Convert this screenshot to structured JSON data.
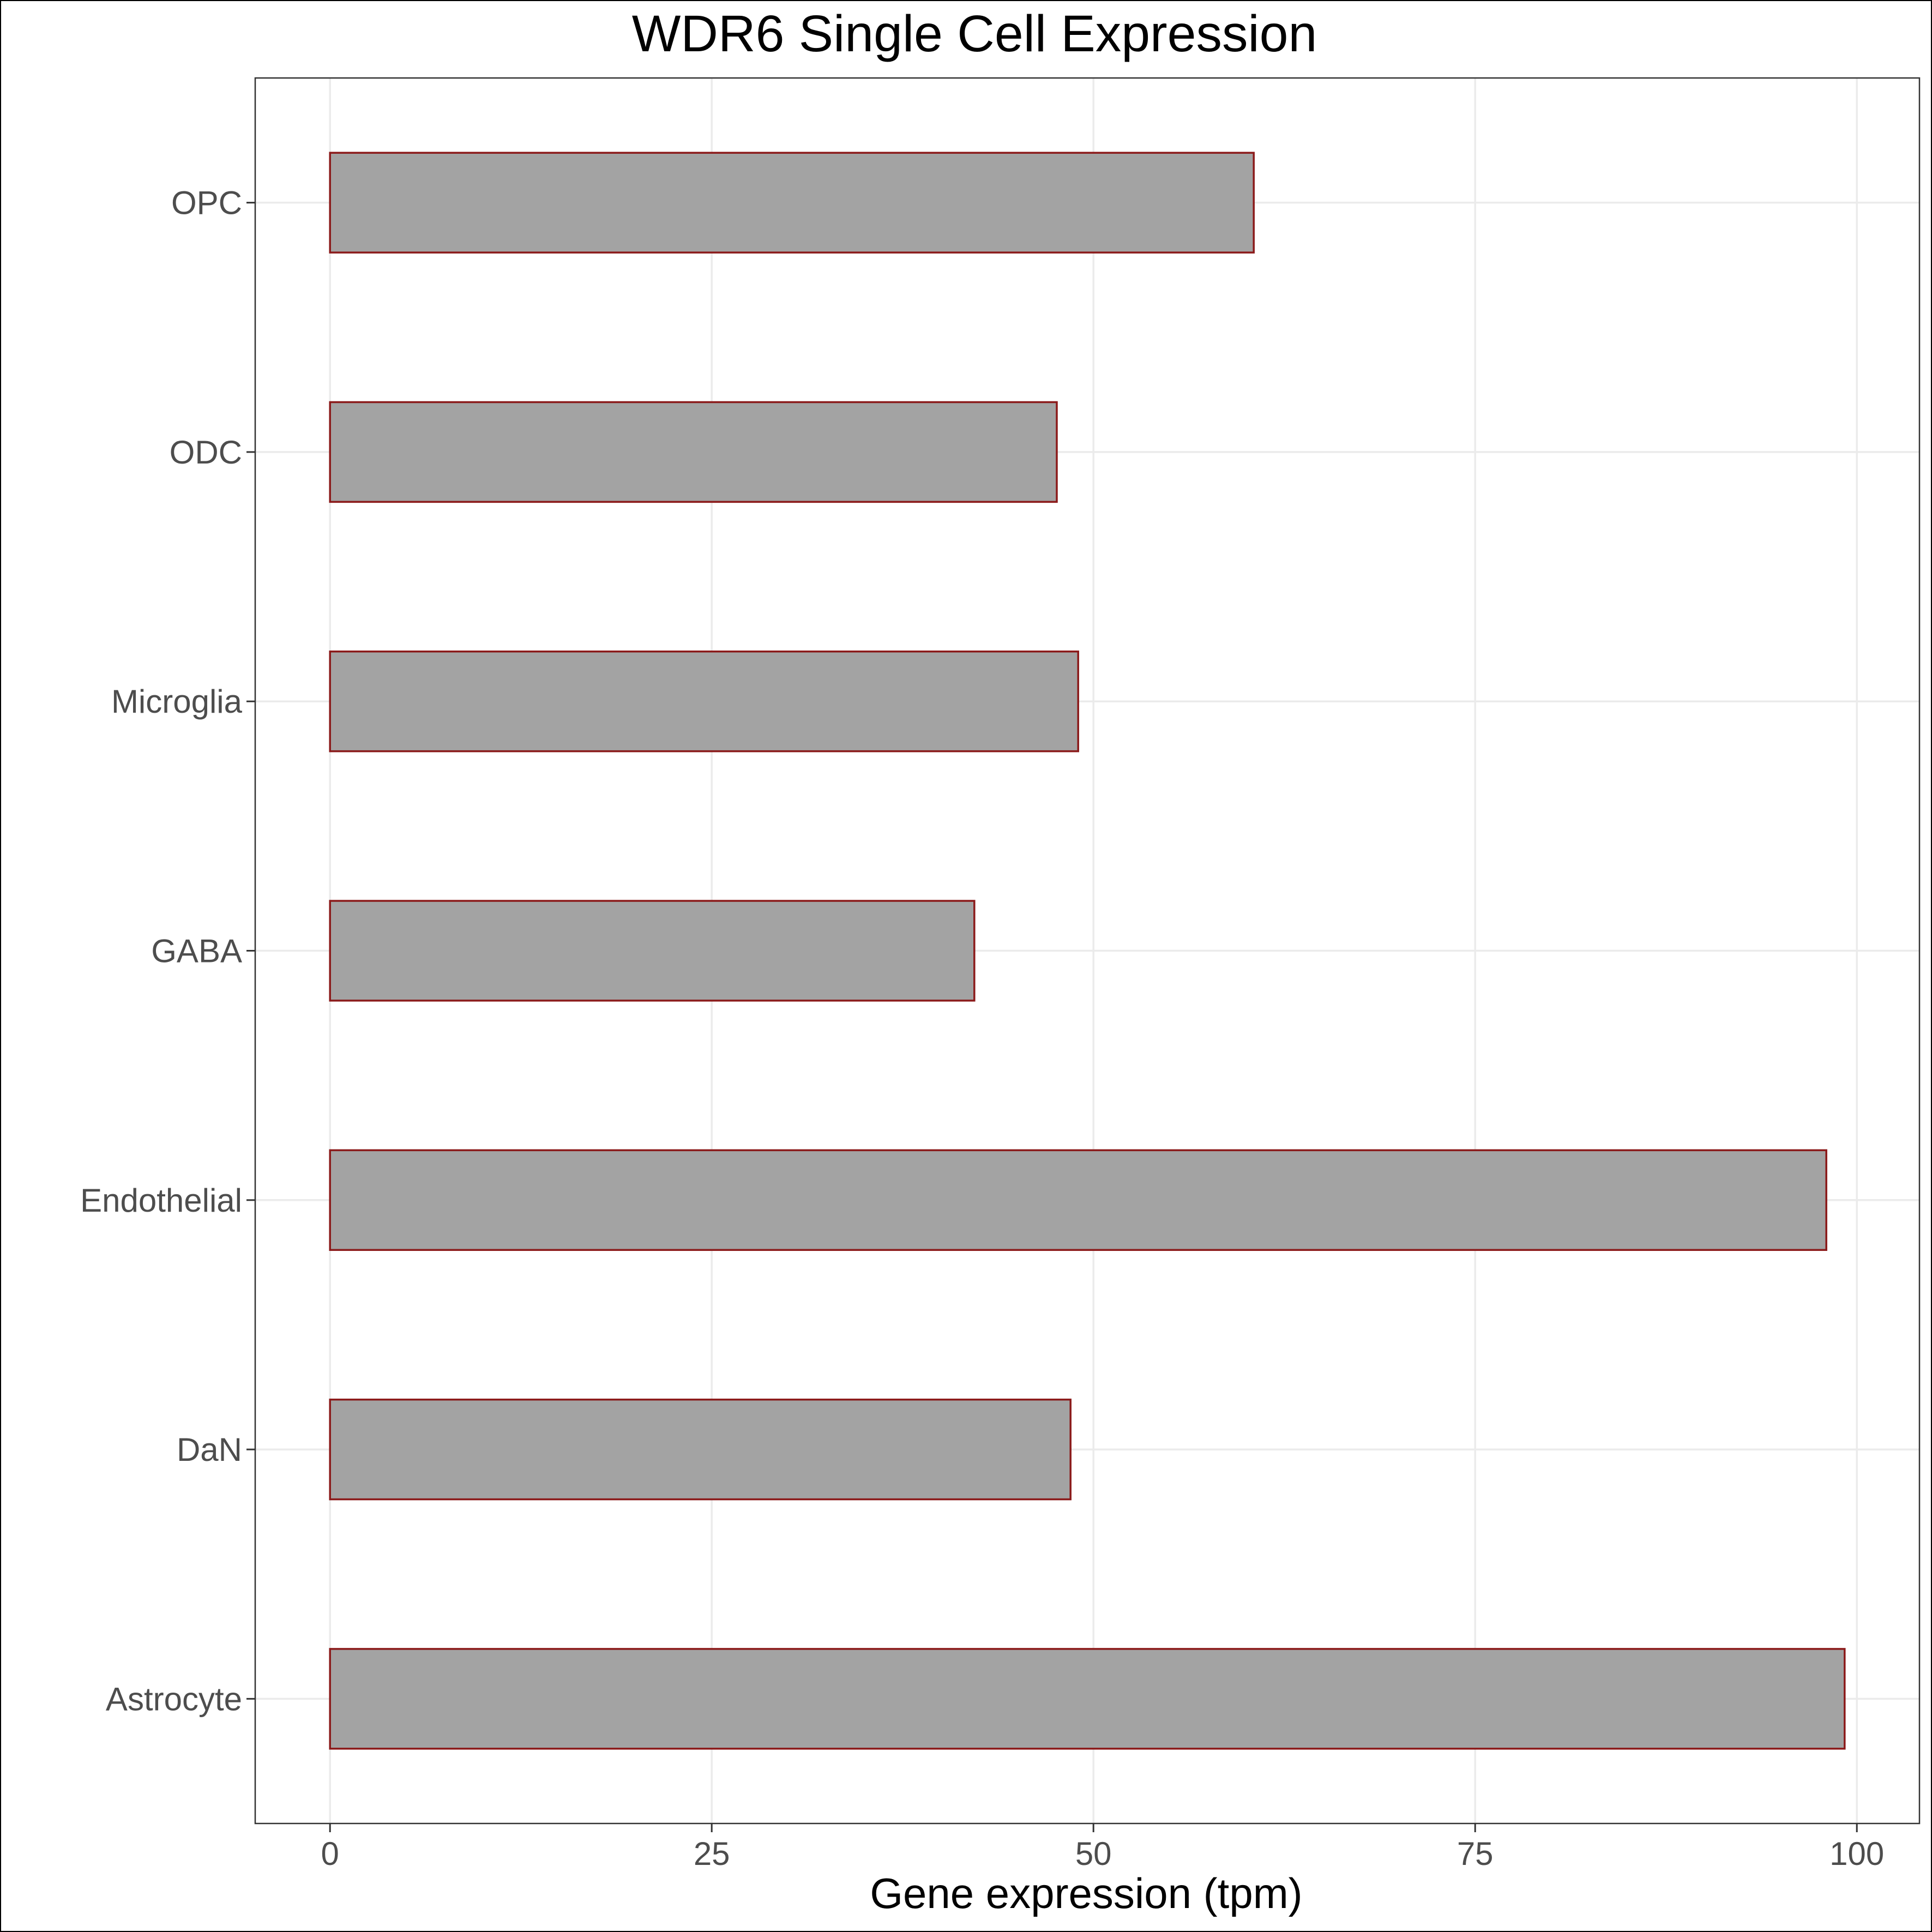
{
  "chart_data": {
    "type": "bar",
    "orientation": "horizontal",
    "title": "WDR6 Single Cell Expression",
    "xlabel": "Gene expression (tpm)",
    "ylabel": "",
    "categories": [
      "Astrocyte",
      "DaN",
      "Endothelial",
      "GABA",
      "Microglia",
      "ODC",
      "OPC"
    ],
    "values": [
      99.2,
      48.5,
      98.0,
      42.2,
      49.0,
      47.6,
      60.5
    ],
    "xlim": [
      -4.9,
      104.1
    ],
    "xticks": [
      0,
      25,
      50,
      75,
      100
    ],
    "grid": true,
    "legend": "none",
    "colors": {
      "bar_fill": "#a3a3a3",
      "bar_stroke": "#8b1a1a",
      "grid": "#ebebeb",
      "panel_border": "#333333"
    }
  }
}
